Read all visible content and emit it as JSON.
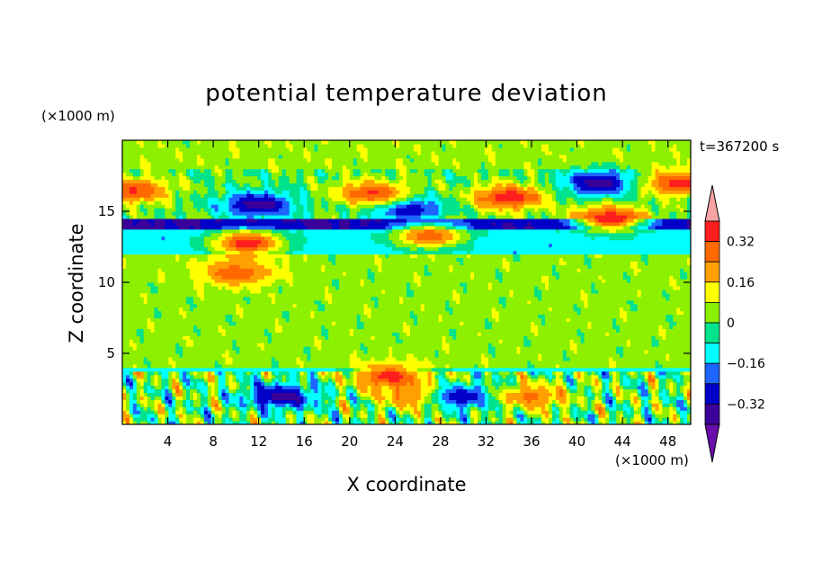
{
  "chart_data": {
    "type": "heatmap",
    "title": "potential temperature deviation",
    "xlabel": "X coordinate",
    "ylabel": "Z coordinate",
    "x_unit": "(×1000 m)",
    "y_unit": "(×1000 m)",
    "time_label": "t=367200 s",
    "xlim": [
      0,
      50
    ],
    "ylim": [
      0,
      20
    ],
    "x_ticks": [
      4,
      8,
      12,
      16,
      20,
      24,
      28,
      32,
      36,
      40,
      44,
      48
    ],
    "y_ticks": [
      5,
      10,
      15
    ],
    "colorbar": {
      "levels": [
        -0.4,
        -0.32,
        -0.24,
        -0.16,
        -0.08,
        0,
        0.08,
        0.16,
        0.24,
        0.32,
        0.4
      ],
      "labels": [
        "0.32",
        "0.16",
        "0",
        "−0.16",
        "−0.32"
      ],
      "label_values": [
        0.32,
        0.16,
        0,
        -0.16,
        -0.32
      ],
      "colors": [
        "#6a0dad",
        "#3a0099",
        "#0000c8",
        "#1e64ff",
        "#00ffff",
        "#00e28c",
        "#8cf000",
        "#ffff00",
        "#ffa000",
        "#ff6a00",
        "#ff1e1e",
        "#f9a3a3"
      ]
    },
    "layers": [
      {
        "z": [
          0,
          3.7
        ],
        "mean": 0.0,
        "texture": "strong"
      },
      {
        "z": [
          3.7,
          4.1
        ],
        "mean": -0.12,
        "texture": "band"
      },
      {
        "z": [
          4.1,
          12
        ],
        "mean": 0.04,
        "texture": "weak"
      },
      {
        "z": [
          12,
          13.7
        ],
        "mean": -0.13,
        "texture": "band"
      },
      {
        "z": [
          13.7,
          14.6
        ],
        "mean": -0.33,
        "texture": "band"
      },
      {
        "z": [
          14.6,
          18
        ],
        "mean": 0.0,
        "texture": "medium"
      },
      {
        "z": [
          18,
          20
        ],
        "mean": 0.05,
        "texture": "weak"
      }
    ],
    "features": [
      {
        "x": 12,
        "z": 15.5,
        "value": -0.38
      },
      {
        "x": 25,
        "z": 15.2,
        "value": -0.36
      },
      {
        "x": 42,
        "z": 17,
        "value": -0.38
      },
      {
        "x": 11,
        "z": 12.8,
        "value": 0.38
      },
      {
        "x": 10,
        "z": 10.7,
        "value": 0.3
      },
      {
        "x": 34,
        "z": 16,
        "value": 0.38
      },
      {
        "x": 22,
        "z": 16.3,
        "value": 0.33
      },
      {
        "x": 43,
        "z": 14.5,
        "value": 0.4
      },
      {
        "x": 49,
        "z": 17,
        "value": 0.35
      },
      {
        "x": 1,
        "z": 16.5,
        "value": 0.33
      },
      {
        "x": 27,
        "z": 13.3,
        "value": 0.3
      },
      {
        "x": 14,
        "z": 2,
        "value": -0.36
      },
      {
        "x": 26,
        "z": 2,
        "value": 0.3
      },
      {
        "x": 30,
        "z": 2,
        "value": -0.33
      },
      {
        "x": 36,
        "z": 2,
        "value": 0.26
      },
      {
        "x": 23.5,
        "z": 3.4,
        "value": 0.36
      }
    ]
  }
}
